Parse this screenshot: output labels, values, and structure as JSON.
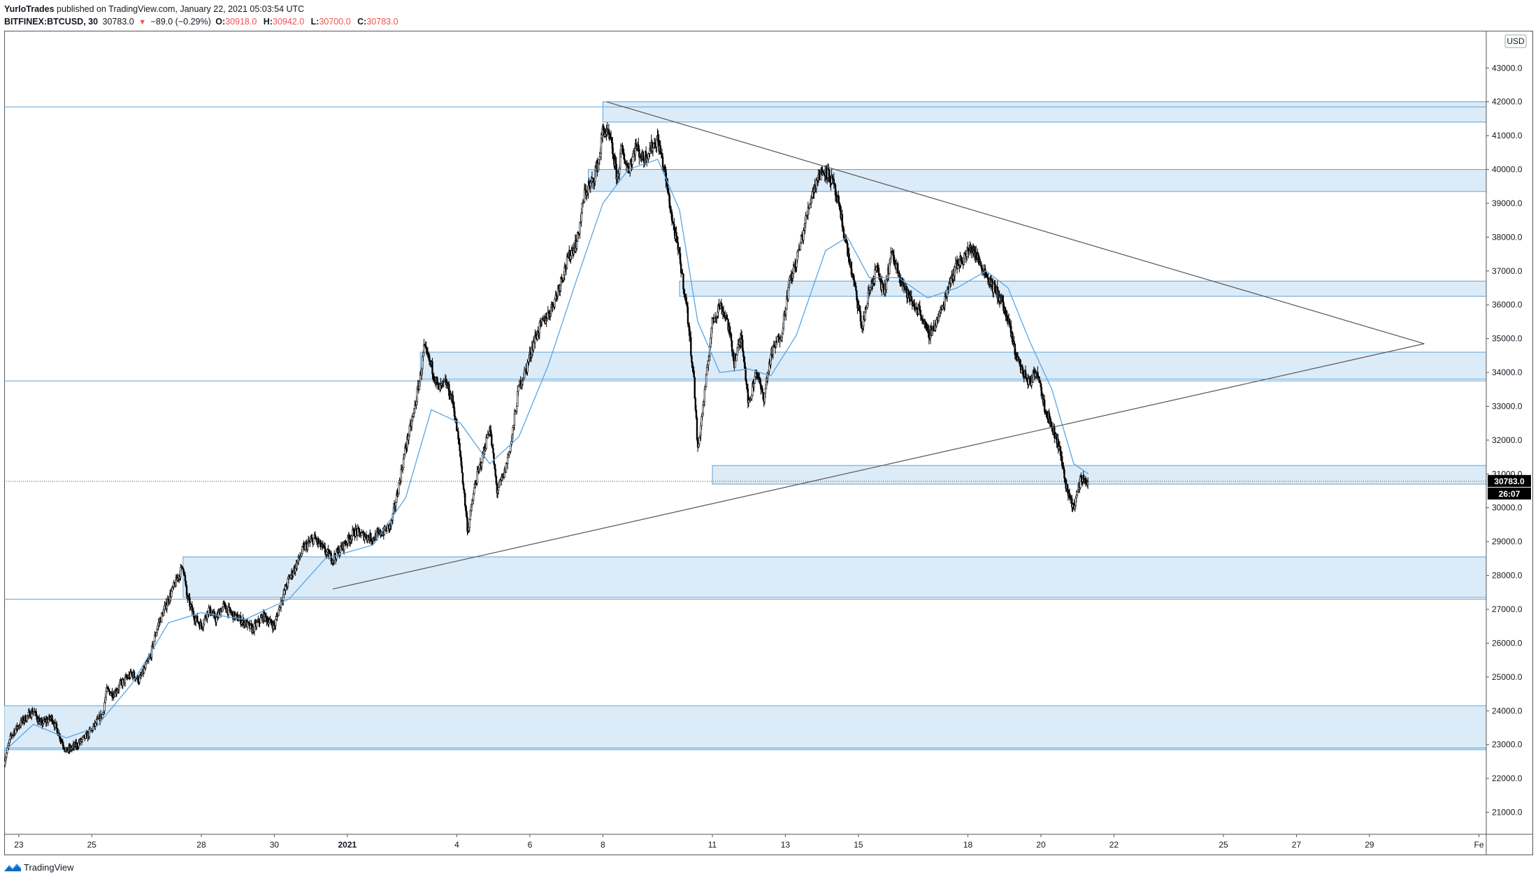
{
  "header": {
    "author": "YurloTrades",
    "published_text": "published on TradingView.com, January 22, 2021 05:03:54 UTC",
    "symbol": "BITFINEX:BTCUSD, 30",
    "last": "30783.0",
    "change_arrow": "▼",
    "change": "−89.0 (−0.29%)",
    "o_label": "O:",
    "o_value": "30918.0",
    "h_label": "H:",
    "h_value": "30942.0",
    "l_label": "L:",
    "l_value": "30700.0",
    "c_label": "C:",
    "c_value": "30783.0"
  },
  "footer": {
    "brand": "TradingView"
  },
  "colors": {
    "zone_fill": "#dcebf8",
    "zone_stroke": "#5ea3d6",
    "trendline": "#555555",
    "ma_line": "#5aa5e0",
    "candles": "#000000",
    "price_label_bg": "#000000"
  },
  "chart_data": {
    "type": "candlestick",
    "symbol": "BITFINEX:BTCUSD",
    "interval": "30",
    "currency": "USD",
    "last_price_label": "30783.0",
    "countdown_label": "26:07",
    "y_ticks": [
      21000,
      22000,
      23000,
      24000,
      25000,
      26000,
      27000,
      28000,
      29000,
      30000,
      31000,
      32000,
      33000,
      34000,
      35000,
      36000,
      37000,
      38000,
      39000,
      40000,
      41000,
      42000,
      43000
    ],
    "y_tick_labels": [
      "21000.0",
      "22000.0",
      "23000.0",
      "24000.0",
      "25000.0",
      "26000.0",
      "27000.0",
      "28000.0",
      "29000.0",
      "30000.0",
      "31000.0",
      "32000.0",
      "33000.0",
      "34000.0",
      "35000.0",
      "36000.0",
      "37000.0",
      "38000.0",
      "39000.0",
      "40000.0",
      "41000.0",
      "42000.0",
      "43000.0"
    ],
    "ylim": [
      20350,
      44100
    ],
    "x_ticks": [
      {
        "day": 23,
        "label": "23"
      },
      {
        "day": 25,
        "label": "25"
      },
      {
        "day": 28,
        "label": "28"
      },
      {
        "day": 30,
        "label": "30"
      },
      {
        "day": 32,
        "label": "2021",
        "bold": true
      },
      {
        "day": 35,
        "label": "4"
      },
      {
        "day": 37,
        "label": "6"
      },
      {
        "day": 39,
        "label": "8"
      },
      {
        "day": 42,
        "label": "11"
      },
      {
        "day": 44,
        "label": "13"
      },
      {
        "day": 46,
        "label": "15"
      },
      {
        "day": 49,
        "label": "18"
      },
      {
        "day": 51,
        "label": "20"
      },
      {
        "day": 53,
        "label": "22"
      },
      {
        "day": 56,
        "label": "25"
      },
      {
        "day": 58,
        "label": "27"
      },
      {
        "day": 60,
        "label": "29"
      },
      {
        "day": 63,
        "label": "Fe"
      }
    ],
    "xlim": [
      22.6,
      63.2
    ],
    "price_path": [
      [
        22.6,
        22500
      ],
      [
        22.8,
        23300
      ],
      [
        23.1,
        23700
      ],
      [
        23.4,
        24000
      ],
      [
        23.6,
        23600
      ],
      [
        23.9,
        23800
      ],
      [
        24.1,
        23300
      ],
      [
        24.3,
        22800
      ],
      [
        24.6,
        23000
      ],
      [
        24.9,
        23300
      ],
      [
        25.1,
        23600
      ],
      [
        25.3,
        23900
      ],
      [
        25.4,
        24600
      ],
      [
        25.6,
        24500
      ],
      [
        25.8,
        24800
      ],
      [
        26.1,
        25100
      ],
      [
        26.3,
        24900
      ],
      [
        26.6,
        25600
      ],
      [
        26.8,
        26500
      ],
      [
        27.1,
        27300
      ],
      [
        27.3,
        27800
      ],
      [
        27.5,
        28300
      ],
      [
        27.6,
        27400
      ],
      [
        27.8,
        26800
      ],
      [
        28.0,
        26500
      ],
      [
        28.2,
        27000
      ],
      [
        28.4,
        26700
      ],
      [
        28.6,
        27100
      ],
      [
        28.9,
        26800
      ],
      [
        29.2,
        26600
      ],
      [
        29.4,
        26400
      ],
      [
        29.7,
        26800
      ],
      [
        30.0,
        26500
      ],
      [
        30.2,
        27300
      ],
      [
        30.4,
        27900
      ],
      [
        30.6,
        28300
      ],
      [
        30.8,
        28800
      ],
      [
        31.1,
        29100
      ],
      [
        31.4,
        28700
      ],
      [
        31.6,
        28500
      ],
      [
        31.9,
        28900
      ],
      [
        32.2,
        29300
      ],
      [
        32.4,
        29200
      ],
      [
        32.7,
        29100
      ],
      [
        33.0,
        29300
      ],
      [
        33.2,
        29500
      ],
      [
        33.4,
        30600
      ],
      [
        33.6,
        31800
      ],
      [
        33.8,
        32700
      ],
      [
        34.0,
        33900
      ],
      [
        34.1,
        34700
      ],
      [
        34.3,
        34200
      ],
      [
        34.5,
        33500
      ],
      [
        34.7,
        33700
      ],
      [
        34.9,
        33100
      ],
      [
        35.1,
        31500
      ],
      [
        35.3,
        29300
      ],
      [
        35.5,
        30700
      ],
      [
        35.7,
        31500
      ],
      [
        35.9,
        32400
      ],
      [
        36.1,
        30500
      ],
      [
        36.3,
        31000
      ],
      [
        36.5,
        32000
      ],
      [
        36.7,
        33600
      ],
      [
        36.9,
        34100
      ],
      [
        37.1,
        34900
      ],
      [
        37.3,
        35400
      ],
      [
        37.5,
        35700
      ],
      [
        37.7,
        36200
      ],
      [
        37.9,
        36900
      ],
      [
        38.1,
        37500
      ],
      [
        38.3,
        37900
      ],
      [
        38.5,
        39300
      ],
      [
        38.7,
        39600
      ],
      [
        38.9,
        40300
      ],
      [
        39.0,
        41200
      ],
      [
        39.2,
        40900
      ],
      [
        39.4,
        39700
      ],
      [
        39.5,
        40600
      ],
      [
        39.7,
        40000
      ],
      [
        39.9,
        40700
      ],
      [
        40.1,
        40300
      ],
      [
        40.3,
        40600
      ],
      [
        40.5,
        40900
      ],
      [
        40.7,
        39900
      ],
      [
        40.9,
        38500
      ],
      [
        41.1,
        37400
      ],
      [
        41.3,
        35900
      ],
      [
        41.5,
        33700
      ],
      [
        41.6,
        31700
      ],
      [
        41.8,
        33500
      ],
      [
        42.0,
        35500
      ],
      [
        42.2,
        36000
      ],
      [
        42.4,
        35600
      ],
      [
        42.6,
        34300
      ],
      [
        42.8,
        35100
      ],
      [
        43.0,
        33000
      ],
      [
        43.2,
        34100
      ],
      [
        43.4,
        33200
      ],
      [
        43.6,
        34500
      ],
      [
        43.9,
        35200
      ],
      [
        44.1,
        36600
      ],
      [
        44.3,
        37300
      ],
      [
        44.5,
        38200
      ],
      [
        44.7,
        39200
      ],
      [
        44.9,
        39800
      ],
      [
        45.1,
        40000
      ],
      [
        45.3,
        39600
      ],
      [
        45.5,
        38700
      ],
      [
        45.7,
        37600
      ],
      [
        45.9,
        36500
      ],
      [
        46.1,
        35300
      ],
      [
        46.3,
        36400
      ],
      [
        46.5,
        37100
      ],
      [
        46.7,
        36300
      ],
      [
        46.9,
        37500
      ],
      [
        47.1,
        37000
      ],
      [
        47.3,
        36400
      ],
      [
        47.5,
        36000
      ],
      [
        47.7,
        35800
      ],
      [
        47.9,
        35100
      ],
      [
        48.1,
        35400
      ],
      [
        48.3,
        35900
      ],
      [
        48.5,
        36700
      ],
      [
        48.7,
        37200
      ],
      [
        48.9,
        37400
      ],
      [
        49.1,
        37700
      ],
      [
        49.3,
        37300
      ],
      [
        49.5,
        36900
      ],
      [
        49.7,
        36500
      ],
      [
        49.9,
        36200
      ],
      [
        50.1,
        35500
      ],
      [
        50.3,
        34600
      ],
      [
        50.5,
        34000
      ],
      [
        50.7,
        33700
      ],
      [
        50.9,
        34100
      ],
      [
        51.1,
        33000
      ],
      [
        51.3,
        32400
      ],
      [
        51.5,
        31800
      ],
      [
        51.7,
        30600
      ],
      [
        51.9,
        30000
      ],
      [
        52.1,
        30900
      ],
      [
        52.3,
        30783
      ]
    ],
    "ma_path": [
      [
        22.6,
        22800
      ],
      [
        23.4,
        23600
      ],
      [
        24.3,
        23200
      ],
      [
        25.1,
        23500
      ],
      [
        26.1,
        24800
      ],
      [
        27.1,
        26600
      ],
      [
        28.0,
        26900
      ],
      [
        29.2,
        26700
      ],
      [
        30.4,
        27300
      ],
      [
        31.4,
        28500
      ],
      [
        32.7,
        28900
      ],
      [
        33.6,
        30300
      ],
      [
        34.3,
        32900
      ],
      [
        35.1,
        32500
      ],
      [
        35.9,
        31300
      ],
      [
        36.7,
        32100
      ],
      [
        37.5,
        34200
      ],
      [
        38.3,
        36800
      ],
      [
        39.0,
        39000
      ],
      [
        39.7,
        40000
      ],
      [
        40.5,
        40300
      ],
      [
        41.1,
        38800
      ],
      [
        41.6,
        35500
      ],
      [
        42.2,
        34000
      ],
      [
        43.0,
        34100
      ],
      [
        43.6,
        33900
      ],
      [
        44.3,
        35100
      ],
      [
        45.1,
        37600
      ],
      [
        45.7,
        38000
      ],
      [
        46.3,
        36800
      ],
      [
        47.1,
        36800
      ],
      [
        47.9,
        36200
      ],
      [
        48.7,
        36500
      ],
      [
        49.5,
        37000
      ],
      [
        50.1,
        36500
      ],
      [
        50.7,
        34900
      ],
      [
        51.3,
        33500
      ],
      [
        51.9,
        31300
      ],
      [
        52.3,
        31000
      ]
    ],
    "horizontal_zones": [
      {
        "top": 42000,
        "bottom": 41400,
        "from_day": 39.0
      },
      {
        "top": 40000,
        "bottom": 39350,
        "from_day": 38.6
      },
      {
        "top": 36700,
        "bottom": 36250,
        "from_day": 41.1
      },
      {
        "top": 34600,
        "bottom": 33800,
        "from_day": 34.0
      },
      {
        "top": 31250,
        "bottom": 30700,
        "from_day": 42.0
      },
      {
        "top": 28550,
        "bottom": 27350,
        "from_day": 27.5
      },
      {
        "top": 24150,
        "bottom": 22850,
        "from_day": 22.6
      }
    ],
    "horizontal_lines": [
      41850,
      33750,
      27300,
      22900
    ],
    "trendlines": [
      {
        "from": [
          39.1,
          42000
        ],
        "to": [
          61.5,
          34850
        ]
      },
      {
        "from": [
          31.6,
          27600
        ],
        "to": [
          61.5,
          34850
        ]
      }
    ],
    "last_price_line": 30783
  }
}
